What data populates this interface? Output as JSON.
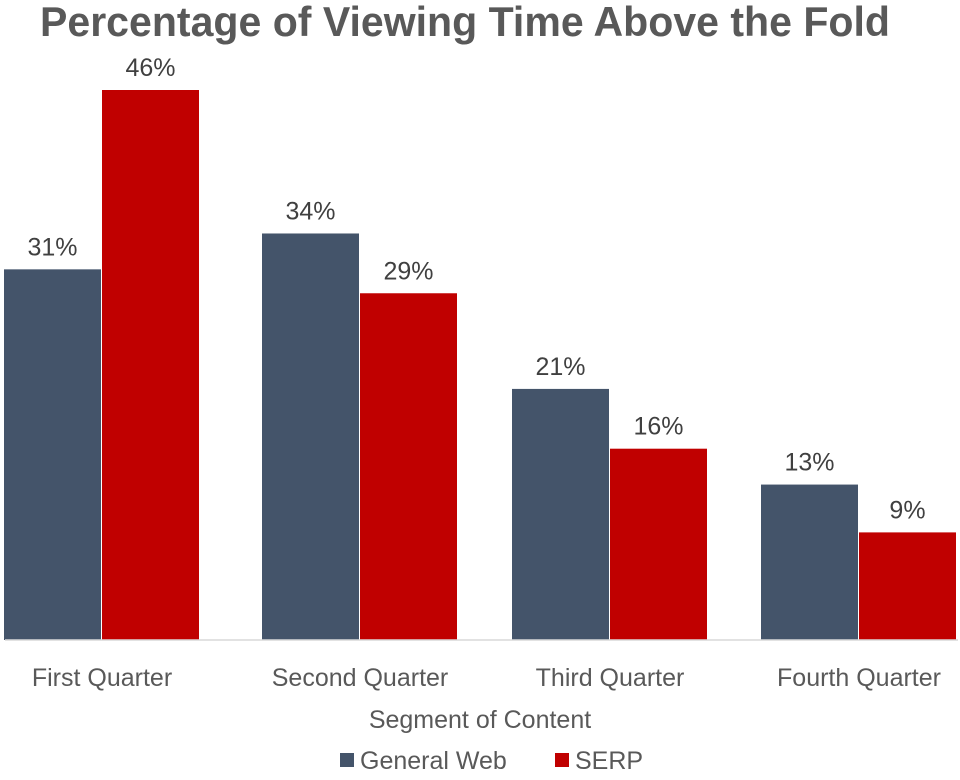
{
  "chart_data": {
    "type": "bar",
    "title": "Percentage of Viewing Time Above the Fold",
    "xlabel": "Segment of Content",
    "ylabel": "",
    "ylim": [
      0,
      53
    ],
    "grid": false,
    "legend_position": "bottom",
    "categories": [
      "First Quarter",
      "Second Quarter",
      "Third Quarter",
      "Fourth Quarter"
    ],
    "series": [
      {
        "name": "General Web",
        "color": "#44546a",
        "values": [
          31,
          34,
          21,
          13
        ]
      },
      {
        "name": "SERP",
        "color": "#c00000",
        "values": [
          46,
          29,
          16,
          9
        ]
      }
    ],
    "value_suffix": "%"
  }
}
